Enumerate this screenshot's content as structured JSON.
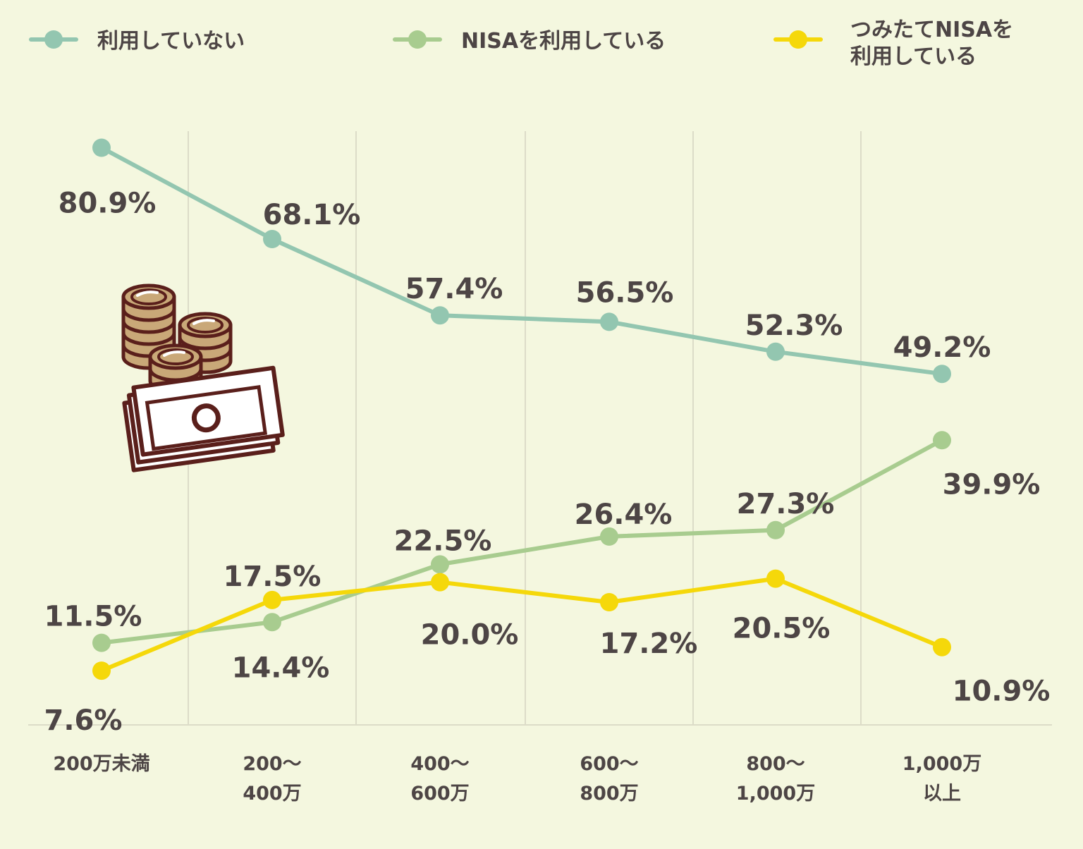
{
  "colors": {
    "background": "#f4f7df",
    "text": "#4d4545",
    "grid": "#dcdcc8",
    "icon_outline": "#5a1f1b",
    "coin": "#c9a878",
    "bill": "#ffffff"
  },
  "decoration": {
    "icon": "coins-and-cash-icon"
  },
  "chart_data": {
    "type": "line",
    "title": "",
    "xlabel": "",
    "ylabel": "",
    "categories": [
      [
        "200万未満"
      ],
      [
        "200〜",
        "400万"
      ],
      [
        "400〜",
        "600万"
      ],
      [
        "600〜",
        "800万"
      ],
      [
        "800〜",
        "1,000万"
      ],
      [
        "1,000万",
        "以上"
      ]
    ],
    "ylim": [
      0,
      85
    ],
    "grid": "vertical",
    "legend_position": "top",
    "series": [
      {
        "name": [
          "利用していない"
        ],
        "color": "#93c6b0",
        "values": [
          80.9,
          68.1,
          57.4,
          56.5,
          52.3,
          49.2
        ],
        "labels": [
          "80.9%",
          "68.1%",
          "57.4%",
          "56.5%",
          "52.3%",
          "49.2%"
        ]
      },
      {
        "name": [
          "NISAを利用している"
        ],
        "color": "#a8cc8f",
        "values": [
          11.5,
          14.4,
          22.5,
          26.4,
          27.3,
          39.9
        ],
        "labels": [
          "11.5%",
          "14.4%",
          "22.5%",
          "26.4%",
          "27.3%",
          "39.9%"
        ]
      },
      {
        "name": [
          "つみたてNISAを",
          "利用している"
        ],
        "color": "#f5d80a",
        "values": [
          7.6,
          17.5,
          20.0,
          17.2,
          20.5,
          10.9
        ],
        "labels": [
          "7.6%",
          "17.5%",
          "20.0%",
          "17.2%",
          "20.5%",
          "10.9%"
        ]
      }
    ]
  }
}
